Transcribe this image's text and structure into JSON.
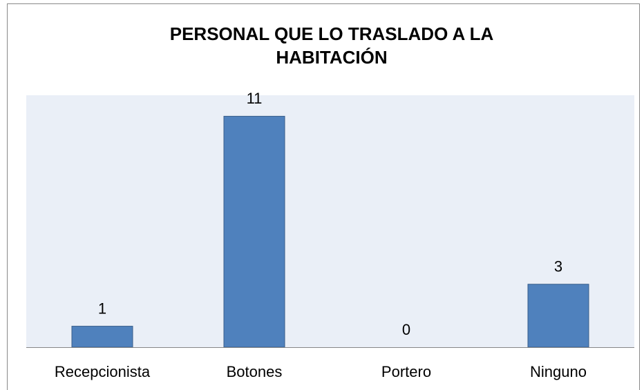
{
  "chart_data": {
    "type": "bar",
    "title": "PERSONAL QUE LO TRASLADO A LA HABITACIÓN",
    "categories": [
      "Recepcionista",
      "Botones",
      "Portero",
      "Ninguno"
    ],
    "values": [
      1,
      11,
      0,
      3
    ],
    "color": "#4f81bd",
    "ylim": [
      0,
      12
    ]
  }
}
